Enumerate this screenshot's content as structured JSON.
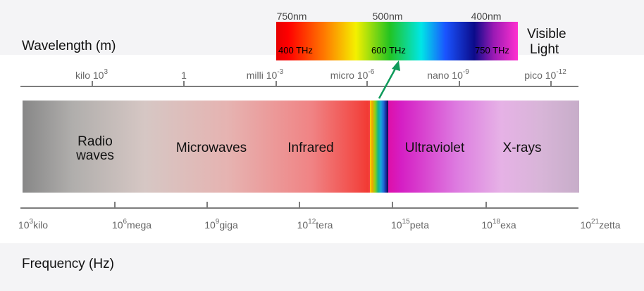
{
  "axis_titles": {
    "wavelength": "Wavelength (m)",
    "frequency": "Frequency (Hz)"
  },
  "wavelength_ticks": [
    {
      "prefix": "kilo",
      "base": "10",
      "exp": "3"
    },
    {
      "prefix": "",
      "base": "1",
      "exp": ""
    },
    {
      "prefix": "milli",
      "base": "10",
      "exp": "-3"
    },
    {
      "prefix": "micro",
      "base": "10",
      "exp": "-6"
    },
    {
      "prefix": "nano",
      "base": "10",
      "exp": "-9"
    },
    {
      "prefix": "pico",
      "base": "10",
      "exp": "-12"
    }
  ],
  "frequency_ticks": [
    {
      "base": "10",
      "exp": "3",
      "suffix": "kilo"
    },
    {
      "base": "10",
      "exp": "6",
      "suffix": "mega"
    },
    {
      "base": "10",
      "exp": "9",
      "suffix": "giga"
    },
    {
      "base": "10",
      "exp": "12",
      "suffix": "tera"
    },
    {
      "base": "10",
      "exp": "15",
      "suffix": "peta"
    },
    {
      "base": "10",
      "exp": "18",
      "suffix": "exa"
    },
    {
      "base": "10",
      "exp": "21",
      "suffix": "zetta"
    }
  ],
  "regions": {
    "radio_line1": "Radio",
    "radio_line2": "waves",
    "microwaves": "Microwaves",
    "infrared": "Infrared",
    "ultraviolet": "Ultraviolet",
    "xrays": "X-rays"
  },
  "visible": {
    "label_line1": "Visible",
    "label_line2": "Light",
    "wl_750": "750nm",
    "wl_500": "500nm",
    "wl_400": "400nm",
    "f_400": "400 THz",
    "f_600": "600 THz",
    "f_750": "750 THz"
  },
  "colors": {
    "axis": "#7d7d7d",
    "pointer_arrow": "#0e9a5a"
  }
}
